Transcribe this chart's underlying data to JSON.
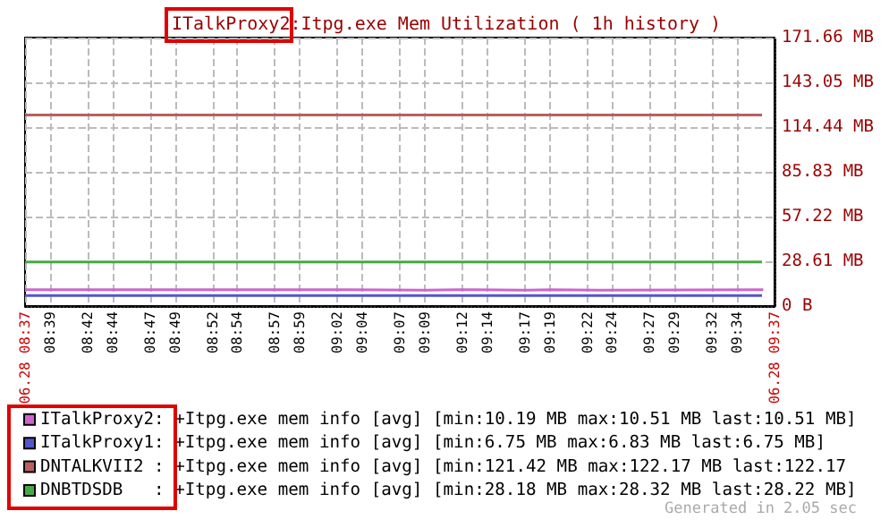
{
  "chart_data": {
    "type": "line",
    "title": "ITalkProxy2:Itpg.exe Mem Utilization ( 1h history )",
    "xlim": [
      8.6167,
      9.6167
    ],
    "xticks": [
      {
        "value": 8.6167,
        "label": "06.28 08:37"
      },
      {
        "value": 8.65,
        "label": "08:39"
      },
      {
        "value": 8.7,
        "label": "08:42"
      },
      {
        "value": 8.7333,
        "label": "08:44"
      },
      {
        "value": 8.7833,
        "label": "08:47"
      },
      {
        "value": 8.8167,
        "label": "08:49"
      },
      {
        "value": 8.8667,
        "label": "08:52"
      },
      {
        "value": 8.9,
        "label": "08:54"
      },
      {
        "value": 8.95,
        "label": "08:57"
      },
      {
        "value": 8.9833,
        "label": "08:59"
      },
      {
        "value": 9.0333,
        "label": "09:02"
      },
      {
        "value": 9.0667,
        "label": "09:04"
      },
      {
        "value": 9.1167,
        "label": "09:07"
      },
      {
        "value": 9.15,
        "label": "09:09"
      },
      {
        "value": 9.2,
        "label": "09:12"
      },
      {
        "value": 9.2333,
        "label": "09:14"
      },
      {
        "value": 9.2833,
        "label": "09:17"
      },
      {
        "value": 9.3167,
        "label": "09:19"
      },
      {
        "value": 9.3667,
        "label": "09:22"
      },
      {
        "value": 9.4,
        "label": "09:24"
      },
      {
        "value": 9.45,
        "label": "09:27"
      },
      {
        "value": 9.4833,
        "label": "09:29"
      },
      {
        "value": 9.5333,
        "label": "09:32"
      },
      {
        "value": 9.5667,
        "label": "09:34"
      },
      {
        "value": 9.6167,
        "label": "06.28 09:37"
      }
    ],
    "ylim": [
      0,
      171.66
    ],
    "yticks": [
      {
        "value": 0,
        "label": "0 B"
      },
      {
        "value": 28.61,
        "label": "28.61 MB"
      },
      {
        "value": 57.22,
        "label": "57.22 MB"
      },
      {
        "value": 85.83,
        "label": "85.83 MB"
      },
      {
        "value": 114.44,
        "label": "114.44 MB"
      },
      {
        "value": 143.05,
        "label": "143.05 MB"
      },
      {
        "value": 171.66,
        "label": "171.66 MB"
      }
    ],
    "grid": true,
    "legend": "bottom",
    "marker": "none",
    "line_style": "solid",
    "series": [
      {
        "name": "ITalkProxy2: +Itpg.exe mem info [avg] [min:10.19 MB max:10.51 MB last:10.51 MB]",
        "type": "step",
        "color": "#cc66cc",
        "x": [
          8.6167,
          9.0517,
          9.1517,
          9.2183,
          9.285,
          9.3183,
          9.3833,
          9.6017
        ],
        "values": [
          10.51,
          10.19,
          10.51,
          10.19,
          10.51,
          10.19,
          10.51,
          10.51
        ]
      },
      {
        "name": "ITalkProxy1: +Itpg.exe mem info [avg] [min:6.75 MB max:6.83 MB last:6.75 MB]",
        "color": "#5555cc",
        "x": [
          8.6167,
          9.6
        ],
        "values": [
          6.75,
          6.75
        ]
      },
      {
        "name": "DNTALKVII2 : +Itpg.exe mem info [avg] [min:121.42 MB max:122.17 MB last:122.17",
        "color": "#b86060",
        "x": [
          8.6167,
          9.6
        ],
        "values": [
          122.17,
          122.17
        ]
      },
      {
        "name": "DNBTDSDB   : +Itpg.exe mem info [avg] [min:28.18 MB max:28.32 MB last:28.22 MB]",
        "color": "#44aa44",
        "x": [
          8.6167,
          9.6
        ],
        "values": [
          28.22,
          28.22
        ]
      }
    ],
    "annotations": [
      "Generated in 2.05 sec"
    ]
  }
}
